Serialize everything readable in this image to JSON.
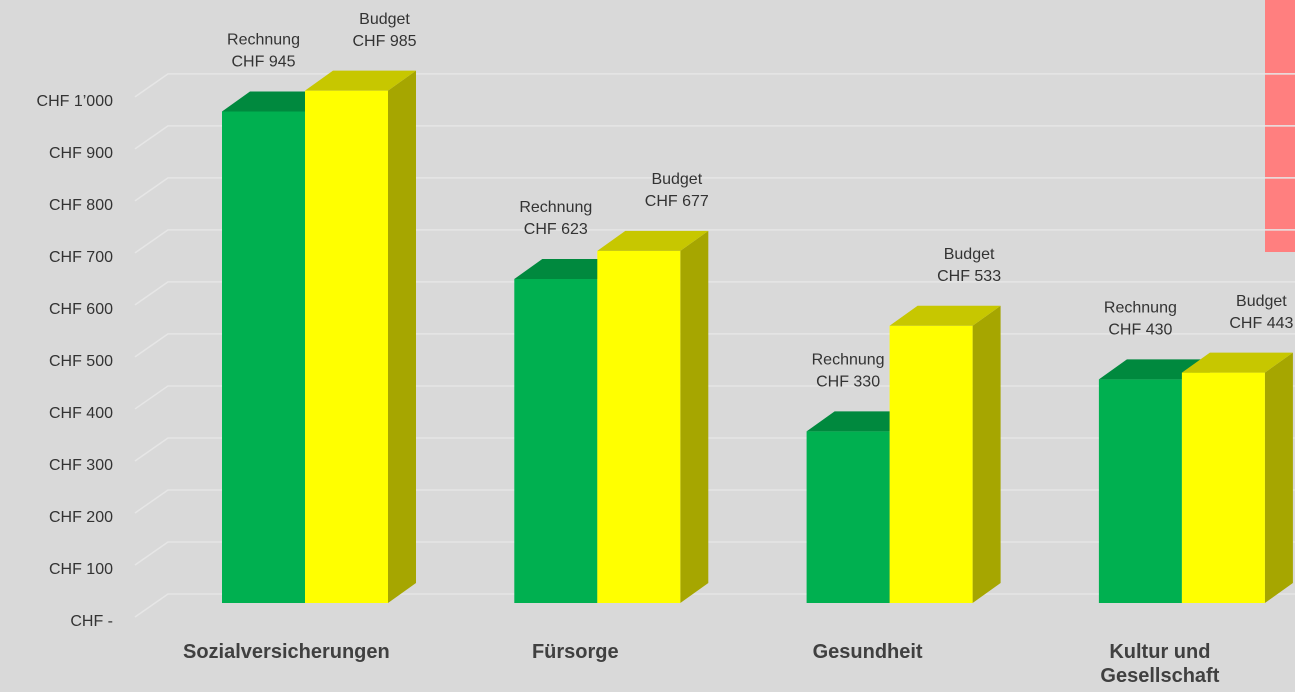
{
  "chart_data": {
    "type": "bar3d",
    "categories": [
      "Sozialversicherungen",
      "Fürsorge",
      "Gesundheit",
      "Kultur und Gesellschaft"
    ],
    "series": [
      {
        "name": "Rechnung",
        "color": "#00b050",
        "values": [
          945,
          623,
          330,
          430
        ],
        "value_labels": [
          "CHF 945",
          "CHF 623",
          "CHF 330",
          "CHF 430"
        ]
      },
      {
        "name": "Budget",
        "color": "#ffff00",
        "values": [
          985,
          677,
          533,
          443
        ],
        "value_labels": [
          "CHF 985",
          "CHF 677",
          "CHF 533",
          "CHF 443"
        ]
      }
    ],
    "ylim": [
      0,
      1000
    ],
    "yticks": [
      {
        "value": 0,
        "label": "CHF -"
      },
      {
        "value": 100,
        "label": "CHF 100"
      },
      {
        "value": 200,
        "label": "CHF 200"
      },
      {
        "value": 300,
        "label": "CHF 300"
      },
      {
        "value": 400,
        "label": "CHF 400"
      },
      {
        "value": 500,
        "label": "CHF 500"
      },
      {
        "value": 600,
        "label": "CHF 600"
      },
      {
        "value": 700,
        "label": "CHF 700"
      },
      {
        "value": 800,
        "label": "CHF 800"
      },
      {
        "value": 900,
        "label": "CHF 900"
      },
      {
        "value": 1000,
        "label": "CHF 1’000"
      }
    ],
    "grid": true
  }
}
